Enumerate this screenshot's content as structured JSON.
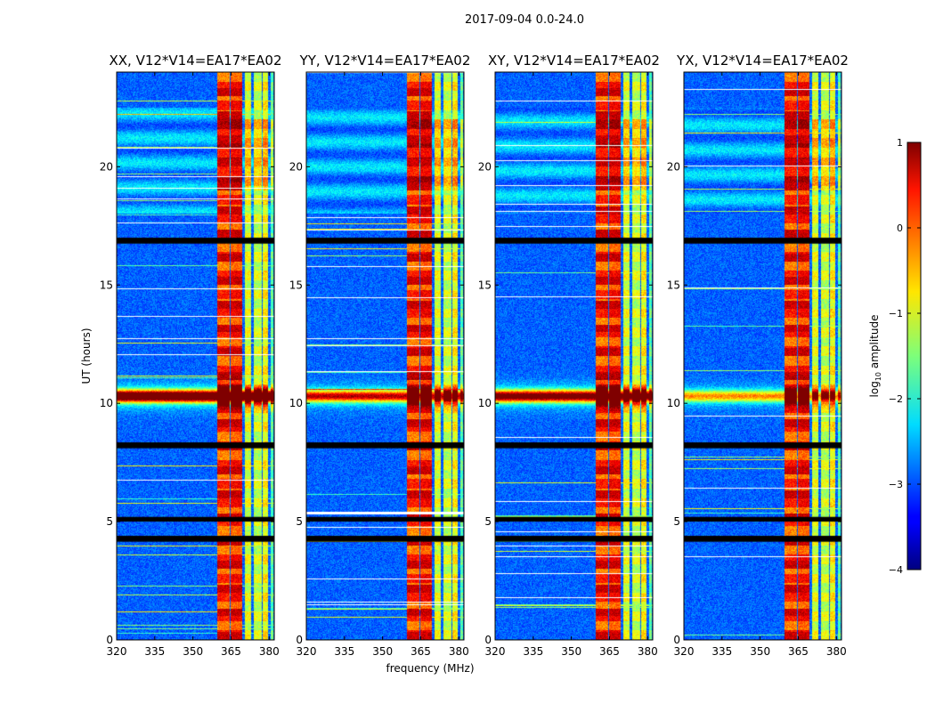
{
  "figure": {
    "suptitle": "2017-09-04 0.0-24.0"
  },
  "colors": {
    "axis": "#000000",
    "gap": "#000000",
    "background": "#ffffff"
  },
  "chart_data": {
    "type": "heatmap",
    "colormap": "jet",
    "xlabel": "frequency (MHz)",
    "ylabel": "UT (hours)",
    "xlim": [
      320,
      382
    ],
    "ylim": [
      0,
      24
    ],
    "xticks": [
      320,
      335,
      350,
      365,
      380
    ],
    "yticks": [
      0,
      5,
      10,
      15,
      20
    ],
    "rfi_band_mhz": [
      359,
      380
    ],
    "flagged_gaps_hours": [
      [
        16.75,
        17.0
      ],
      [
        8.1,
        8.35
      ],
      [
        5.0,
        5.2
      ],
      [
        4.15,
        4.4
      ]
    ],
    "colorbar": {
      "label": "log10 amplitude",
      "label_main": "log",
      "label_sub": "10",
      "label_tail": " amplitude",
      "range": [
        -4,
        1
      ],
      "ticks": [
        1,
        0,
        -1,
        -2,
        -3,
        -4
      ]
    },
    "panels": [
      {
        "title": "XX, V12*V14=EA17*EA02",
        "band_strength": 1.0
      },
      {
        "title": "YY, V12*V14=EA17*EA02",
        "band_strength": 0.7
      },
      {
        "title": "XY, V12*V14=EA17*EA02",
        "band_strength": 0.85
      },
      {
        "title": "YX, V12*V14=EA17*EA02",
        "band_strength": 0.5
      }
    ]
  }
}
